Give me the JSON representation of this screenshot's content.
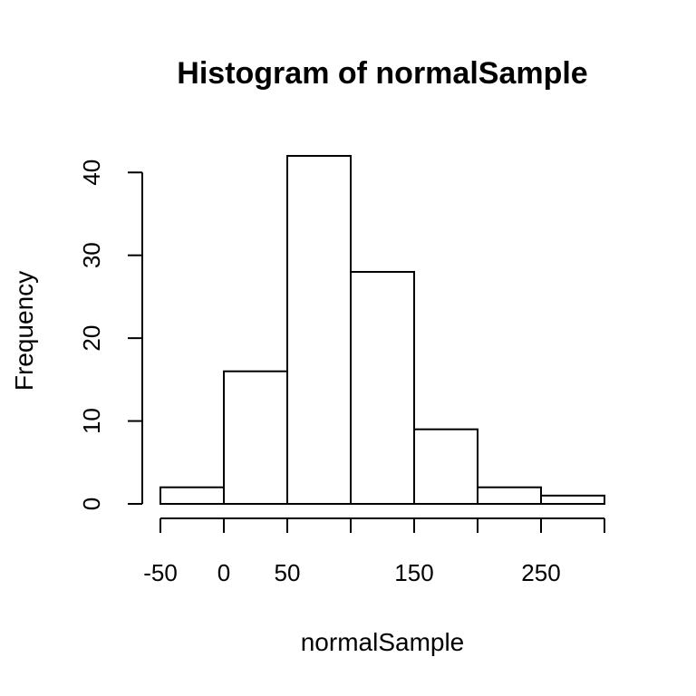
{
  "chart_data": {
    "type": "bar",
    "title": "Histogram of normalSample",
    "xlabel": "normalSample",
    "ylabel": "Frequency",
    "bins": [
      {
        "start": -50,
        "end": 0,
        "count": 2
      },
      {
        "start": 0,
        "end": 50,
        "count": 16
      },
      {
        "start": 50,
        "end": 100,
        "count": 42
      },
      {
        "start": 100,
        "end": 150,
        "count": 28
      },
      {
        "start": 150,
        "end": 200,
        "count": 9
      },
      {
        "start": 200,
        "end": 250,
        "count": 2
      },
      {
        "start": 250,
        "end": 300,
        "count": 1
      }
    ],
    "xlim": [
      -50,
      300
    ],
    "ylim": [
      0,
      42
    ],
    "x_ticks": [
      -50,
      0,
      50,
      100,
      150,
      200,
      250,
      300
    ],
    "x_tick_labels": [
      "-50",
      "0",
      "50",
      "",
      "150",
      "",
      "250",
      ""
    ],
    "y_ticks": [
      0,
      10,
      20,
      30,
      40
    ],
    "y_tick_labels": [
      "0",
      "10",
      "20",
      "30",
      "40"
    ],
    "grid": false,
    "legend": "none"
  }
}
